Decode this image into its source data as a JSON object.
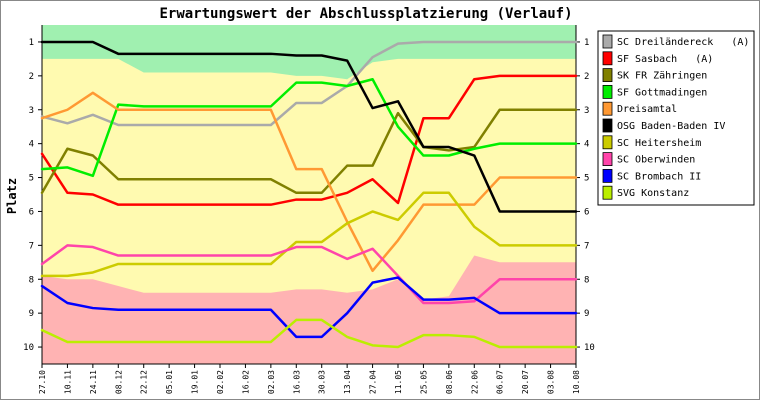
{
  "chart_data": {
    "type": "line",
    "title": "Erwartungswert der Abschlussplatzierung (Verlauf)",
    "xlabel": "",
    "ylabel": "Platz",
    "ylim": [
      0.5,
      10.5
    ],
    "y_inverted": true,
    "yticks": [
      1,
      2,
      3,
      4,
      5,
      6,
      7,
      8,
      9,
      10
    ],
    "grid": false,
    "legend_position": "right",
    "categories": [
      "27.10",
      "10.11",
      "24.11",
      "08.12",
      "22.12",
      "05.01",
      "19.01",
      "02.02",
      "16.02",
      "02.03",
      "16.03",
      "30.03",
      "13.04",
      "27.04",
      "11.05",
      "25.05",
      "08.06",
      "22.06",
      "06.07",
      "20.07",
      "03.08",
      "10.08"
    ],
    "bands": [
      {
        "name": "aufstieg",
        "color": "#a0f0b0",
        "lower": [
          1.5,
          1.5,
          1.5,
          1.5,
          1.9,
          1.9,
          1.9,
          1.9,
          1.9,
          1.9,
          2.0,
          2.0,
          2.1,
          1.6,
          1.5,
          1.5,
          1.5,
          1.5,
          1.5,
          1.5,
          1.5,
          1.5
        ]
      },
      {
        "name": "mittelfeld",
        "color": "#fffab0"
      },
      {
        "name": "abstieg",
        "color": "#ffb3b3",
        "upper": [
          7.9,
          8.0,
          8.0,
          8.2,
          8.4,
          8.4,
          8.4,
          8.4,
          8.4,
          8.4,
          8.3,
          8.3,
          8.4,
          8.3,
          8.0,
          8.6,
          8.5,
          7.3,
          7.5,
          7.5,
          7.5,
          7.5
        ]
      }
    ],
    "series": [
      {
        "name": "SC Dreiländereck   (A)",
        "color": "#aaaaaa",
        "values": [
          3.2,
          3.4,
          3.15,
          3.45,
          3.45,
          3.45,
          3.45,
          3.45,
          3.45,
          3.45,
          2.8,
          2.8,
          2.3,
          1.45,
          1.05,
          1.0,
          1.0,
          1.0,
          1.0,
          1.0,
          1.0,
          1.0
        ]
      },
      {
        "name": "SF Sasbach   (A)",
        "color": "#ff0000",
        "values": [
          4.3,
          5.45,
          5.5,
          5.8,
          5.8,
          5.8,
          5.8,
          5.8,
          5.8,
          5.8,
          5.65,
          5.65,
          5.45,
          5.05,
          5.75,
          3.25,
          3.25,
          2.1,
          2.0,
          2.0,
          2.0,
          2.0
        ]
      },
      {
        "name": "SK FR Zähringen",
        "color": "#808000",
        "values": [
          5.45,
          4.15,
          4.35,
          5.05,
          5.05,
          5.05,
          5.05,
          5.05,
          5.05,
          5.05,
          5.45,
          5.45,
          4.65,
          4.65,
          3.1,
          4.1,
          4.2,
          4.1,
          3.0,
          3.0,
          3.0,
          3.0
        ]
      },
      {
        "name": "SF Gottmadingen",
        "color": "#00ee00",
        "values": [
          4.75,
          4.7,
          4.95,
          2.85,
          2.9,
          2.9,
          2.9,
          2.9,
          2.9,
          2.9,
          2.2,
          2.2,
          2.3,
          2.1,
          3.5,
          4.35,
          4.35,
          4.15,
          4.0,
          4.0,
          4.0,
          4.0
        ]
      },
      {
        "name": "Dreisamtal",
        "color": "#ff9933",
        "values": [
          3.25,
          3.0,
          2.5,
          3.0,
          3.0,
          3.0,
          3.0,
          3.0,
          3.0,
          3.0,
          4.75,
          4.75,
          6.3,
          7.75,
          6.85,
          5.8,
          5.8,
          5.8,
          5.0,
          5.0,
          5.0,
          5.0
        ]
      },
      {
        "name": "OSG Baden-Baden IV",
        "color": "#000000",
        "values": [
          1.0,
          1.0,
          1.0,
          1.35,
          1.35,
          1.35,
          1.35,
          1.35,
          1.35,
          1.35,
          1.4,
          1.4,
          1.55,
          2.95,
          2.75,
          4.1,
          4.1,
          4.35,
          6.0,
          6.0,
          6.0,
          6.0
        ]
      },
      {
        "name": "SC Heitersheim",
        "color": "#cccc00",
        "values": [
          7.9,
          7.9,
          7.8,
          7.55,
          7.55,
          7.55,
          7.55,
          7.55,
          7.55,
          7.55,
          6.9,
          6.9,
          6.35,
          6.0,
          6.25,
          5.45,
          5.45,
          6.45,
          7.0,
          7.0,
          7.0,
          7.0
        ]
      },
      {
        "name": "SC Oberwinden",
        "color": "#ff44aa",
        "values": [
          7.55,
          7.0,
          7.05,
          7.3,
          7.3,
          7.3,
          7.3,
          7.3,
          7.3,
          7.3,
          7.05,
          7.05,
          7.4,
          7.1,
          7.9,
          8.7,
          8.7,
          8.65,
          8.0,
          8.0,
          8.0,
          8.0
        ]
      },
      {
        "name": "SC Brombach II",
        "color": "#0000ff",
        "values": [
          8.2,
          8.7,
          8.85,
          8.9,
          8.9,
          8.9,
          8.9,
          8.9,
          8.9,
          8.9,
          9.7,
          9.7,
          9.0,
          8.1,
          7.95,
          8.6,
          8.6,
          8.55,
          9.0,
          9.0,
          9.0,
          9.0
        ]
      },
      {
        "name": "SVG Konstanz",
        "color": "#bbee00",
        "values": [
          9.5,
          9.85,
          9.85,
          9.85,
          9.85,
          9.85,
          9.85,
          9.85,
          9.85,
          9.85,
          9.2,
          9.2,
          9.7,
          9.95,
          10.0,
          9.65,
          9.65,
          9.7,
          10.0,
          10.0,
          10.0,
          10.0
        ]
      }
    ]
  }
}
